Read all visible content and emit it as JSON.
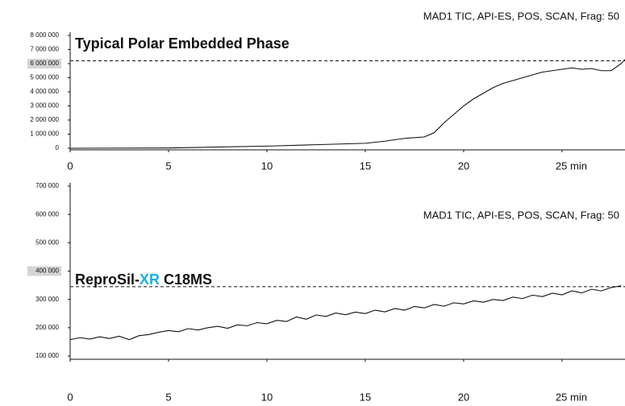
{
  "chart_data": [
    {
      "type": "line",
      "title": "Typical Polar Embedded Phase",
      "annotation": "MAD1 TIC, API-ES, POS, SCAN, Frag: 50",
      "x": [
        0,
        5,
        10,
        12.5,
        15,
        16,
        17,
        18,
        18.5,
        19,
        19.5,
        20,
        20.5,
        21,
        21.5,
        22,
        22.5,
        23,
        23.5,
        24,
        24.5,
        25,
        25.5,
        26,
        26.5,
        27,
        27.5,
        28,
        28.2
      ],
      "series": [
        {
          "name": "TIC",
          "color": "#111111",
          "values": [
            0,
            20000,
            150000,
            250000,
            350000,
            500000,
            700000,
            800000,
            1100000,
            1800000,
            2400000,
            3000000,
            3500000,
            3900000,
            4300000,
            4600000,
            4800000,
            5000000,
            5200000,
            5400000,
            5500000,
            5600000,
            5700000,
            5600000,
            5650000,
            5500000,
            5500000,
            6000000,
            6300000
          ]
        }
      ],
      "xlim": [
        0,
        28.2
      ],
      "xticks": [
        0,
        5,
        10,
        15,
        20,
        {
          "value": 25,
          "label": "25 min"
        }
      ],
      "ylim": [
        0,
        8000000
      ],
      "yticks": [
        0,
        {
          "value": 1000000,
          "label": "1 000 000"
        },
        {
          "value": 2000000,
          "label": "2 000 000"
        },
        {
          "value": 3000000,
          "label": "3 000 000"
        },
        {
          "value": 4000000,
          "label": "4 000 000"
        },
        {
          "value": 5000000,
          "label": "5 000 000"
        },
        {
          "value": 6000000,
          "label": "6 000 000"
        },
        {
          "value": 7000000,
          "label": "7 000 000"
        },
        {
          "value": 8000000,
          "label": "8 000 000"
        }
      ],
      "highlighted_ytick": 6000000,
      "reference_line": 6200000
    },
    {
      "type": "line",
      "title_parts": [
        {
          "text": "ReproSil-"
        },
        {
          "text": "XR",
          "color": "#1ab0e8"
        },
        {
          "text": " C18MS"
        }
      ],
      "annotation": "MAD1 TIC, API-ES, POS, SCAN, Frag: 50",
      "x": [
        0,
        0.5,
        1,
        1.5,
        2,
        2.5,
        3,
        3.5,
        4,
        4.5,
        5,
        5.5,
        6,
        6.5,
        7,
        7.5,
        8,
        8.5,
        9,
        9.5,
        10,
        10.5,
        11,
        11.5,
        12,
        12.5,
        13,
        13.5,
        14,
        14.5,
        15,
        15.5,
        16,
        16.5,
        17,
        17.5,
        18,
        18.5,
        19,
        19.5,
        20,
        20.5,
        21,
        21.5,
        22,
        22.5,
        23,
        23.5,
        24,
        24.5,
        25,
        25.5,
        26,
        26.5,
        27,
        27.5,
        28
      ],
      "series": [
        {
          "name": "TIC",
          "color": "#111111",
          "values": [
            158000,
            165000,
            160000,
            168000,
            162000,
            170000,
            158000,
            172000,
            176000,
            184000,
            190000,
            186000,
            197000,
            192000,
            200000,
            205000,
            198000,
            210000,
            207000,
            218000,
            214000,
            226000,
            222000,
            238000,
            230000,
            245000,
            240000,
            252000,
            246000,
            255000,
            250000,
            262000,
            256000,
            268000,
            262000,
            275000,
            270000,
            282000,
            276000,
            288000,
            284000,
            295000,
            290000,
            300000,
            296000,
            308000,
            303000,
            315000,
            310000,
            322000,
            316000,
            330000,
            323000,
            336000,
            330000,
            342000,
            348000
          ]
        }
      ],
      "xlim": [
        0,
        28.2
      ],
      "xticks": [
        0,
        5,
        10,
        15,
        20,
        {
          "value": 25,
          "label": "25 min"
        }
      ],
      "ylim": [
        100000,
        700000
      ],
      "yticks": [
        {
          "value": 100000,
          "label": "100 000"
        },
        {
          "value": 200000,
          "label": "200 000"
        },
        {
          "value": 300000,
          "label": "300 000"
        },
        {
          "value": 400000,
          "label": "400 000"
        },
        {
          "value": 500000,
          "label": "500 000"
        },
        {
          "value": 600000,
          "label": "600 000"
        },
        {
          "value": 700000,
          "label": "700 000"
        }
      ],
      "highlighted_ytick": 400000,
      "reference_line": 345000
    }
  ]
}
